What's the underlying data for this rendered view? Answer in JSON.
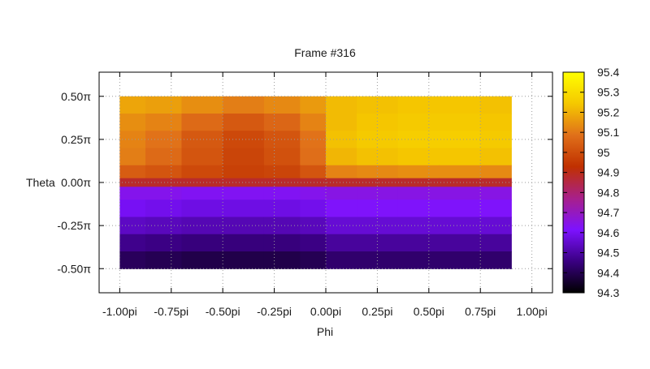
{
  "chart_data": {
    "type": "heatmap",
    "title": "Frame #316",
    "xlabel": "Phi",
    "ylabel": "Theta",
    "x_range_pi": [
      -1.1,
      1.1
    ],
    "y_range_pi": [
      -0.64,
      0.64
    ],
    "data_extent_pi": {
      "x": [
        -1.0,
        0.9
      ],
      "y": [
        -0.5,
        0.5
      ]
    },
    "x_ticks": [
      {
        "value": -1.0,
        "label": "-1.00pi"
      },
      {
        "value": -0.75,
        "label": "-0.75pi"
      },
      {
        "value": -0.5,
        "label": "-0.50pi"
      },
      {
        "value": -0.25,
        "label": "-0.25pi"
      },
      {
        "value": 0.0,
        "label": "0.00pi"
      },
      {
        "value": 0.25,
        "label": "0.25pi"
      },
      {
        "value": 0.5,
        "label": "0.50pi"
      },
      {
        "value": 0.75,
        "label": "0.75pi"
      },
      {
        "value": 1.0,
        "label": "1.00pi"
      }
    ],
    "y_ticks": [
      {
        "value": 0.5,
        "label": "0.50π"
      },
      {
        "value": 0.25,
        "label": "0.25π"
      },
      {
        "value": 0.0,
        "label": "0.00π"
      },
      {
        "value": -0.25,
        "label": "-0.25π"
      },
      {
        "value": -0.5,
        "label": "-0.50π"
      }
    ],
    "grid": true,
    "colorbar": {
      "position": "right",
      "range": [
        94.3,
        95.4
      ],
      "palette": [
        "#000000",
        "#3a0082",
        "#7d12ff",
        "#a8208a",
        "#c03000",
        "#e0701a",
        "#f5c800",
        "#ffff00"
      ],
      "ticks": [
        "95.4",
        "95.3",
        "95.2",
        "95.1",
        "95",
        "94.9",
        "94.8",
        "94.7",
        "94.6",
        "94.5",
        "94.4",
        "94.3"
      ]
    },
    "cells": {
      "note_units": "theta and phi in units of pi, value in colorbar units",
      "theta_rows": [
        0.45,
        0.35,
        0.25,
        0.15,
        0.05,
        0.0,
        -0.05,
        -0.15,
        -0.25,
        -0.35,
        -0.45
      ],
      "phi_cols": [
        -0.95,
        -0.8,
        -0.6,
        -0.4,
        -0.2,
        -0.05,
        0.05,
        0.25,
        0.45,
        0.65,
        0.85
      ],
      "values": [
        [
          95.18,
          95.17,
          95.14,
          95.11,
          95.13,
          95.16,
          95.22,
          95.23,
          95.24,
          95.24,
          95.23
        ],
        [
          95.14,
          95.12,
          95.07,
          95.03,
          95.06,
          95.12,
          95.22,
          95.24,
          95.25,
          95.25,
          95.24
        ],
        [
          95.12,
          95.09,
          95.03,
          94.99,
          95.02,
          95.09,
          95.23,
          95.25,
          95.26,
          95.26,
          95.25
        ],
        [
          95.11,
          95.07,
          95.02,
          94.98,
          95.01,
          95.08,
          95.21,
          95.23,
          95.24,
          95.24,
          95.23
        ],
        [
          95.04,
          95.02,
          94.99,
          94.97,
          94.98,
          95.02,
          95.12,
          95.13,
          95.14,
          95.14,
          95.13
        ],
        [
          94.88,
          94.88,
          94.88,
          94.88,
          94.88,
          94.88,
          94.88,
          94.88,
          94.88,
          94.88,
          94.88
        ],
        [
          94.64,
          94.64,
          94.63,
          94.63,
          94.63,
          94.64,
          94.65,
          94.65,
          94.65,
          94.65,
          94.65
        ],
        [
          94.6,
          94.59,
          94.58,
          94.58,
          94.58,
          94.59,
          94.62,
          94.62,
          94.62,
          94.62,
          94.62
        ],
        [
          94.54,
          94.53,
          94.52,
          94.52,
          94.52,
          94.53,
          94.56,
          94.56,
          94.56,
          94.56,
          94.56
        ],
        [
          94.47,
          94.46,
          94.45,
          94.45,
          94.45,
          94.46,
          94.49,
          94.49,
          94.49,
          94.49,
          94.49
        ],
        [
          94.41,
          94.4,
          94.39,
          94.39,
          94.39,
          94.4,
          94.43,
          94.43,
          94.43,
          94.43,
          94.43
        ]
      ]
    }
  }
}
